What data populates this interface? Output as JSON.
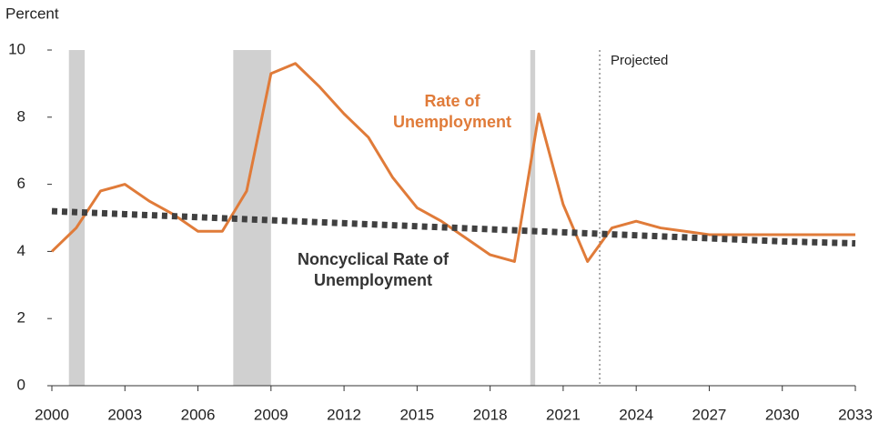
{
  "chart_data": {
    "type": "line",
    "y_label": "Percent",
    "x": [
      2000,
      2001,
      2002,
      2003,
      2004,
      2005,
      2006,
      2007,
      2008,
      2009,
      2010,
      2011,
      2012,
      2013,
      2014,
      2015,
      2016,
      2017,
      2018,
      2019,
      2020,
      2021,
      2022,
      2023,
      2024,
      2025,
      2026,
      2027,
      2028,
      2029,
      2030,
      2031,
      2032,
      2033
    ],
    "series": [
      {
        "name": "Rate of Unemployment",
        "color": "#e07b39",
        "style": "solid",
        "values": [
          4.0,
          4.7,
          5.8,
          6.0,
          5.5,
          5.1,
          4.6,
          4.6,
          5.8,
          9.3,
          9.6,
          8.9,
          8.1,
          7.4,
          6.2,
          5.3,
          4.9,
          4.4,
          3.9,
          3.7,
          8.1,
          5.4,
          3.7,
          4.7,
          4.9,
          4.7,
          4.6,
          4.5,
          4.5,
          4.5,
          4.5,
          4.5,
          4.5,
          4.5
        ]
      },
      {
        "name": "Noncyclical Rate of Unemployment",
        "color": "#404040",
        "style": "dotted",
        "values": [
          5.2,
          5.17,
          5.14,
          5.11,
          5.08,
          5.05,
          5.02,
          4.99,
          4.96,
          4.93,
          4.9,
          4.87,
          4.84,
          4.81,
          4.78,
          4.75,
          4.72,
          4.69,
          4.66,
          4.63,
          4.6,
          4.57,
          4.54,
          4.51,
          4.48,
          4.45,
          4.42,
          4.39,
          4.36,
          4.33,
          4.3,
          4.28,
          4.26,
          4.24
        ]
      }
    ],
    "series_labels": [
      [
        "Rate of",
        "Unemployment"
      ],
      [
        "Noncyclical Rate of",
        "Unemployment"
      ]
    ],
    "recessions": [
      [
        2000.7,
        2001.35
      ],
      [
        2007.45,
        2009.0
      ],
      [
        2019.65,
        2019.85
      ]
    ],
    "recession_color": "#d0d0d0",
    "projection_start": 2022.5,
    "projection_label": "Projected",
    "xlim": [
      2000,
      2033
    ],
    "xticks": [
      2000,
      2003,
      2006,
      2009,
      2012,
      2015,
      2018,
      2021,
      2024,
      2027,
      2030,
      2033
    ],
    "ylim": [
      0,
      10
    ],
    "yticks": [
      0,
      2,
      4,
      6,
      8,
      10
    ]
  }
}
